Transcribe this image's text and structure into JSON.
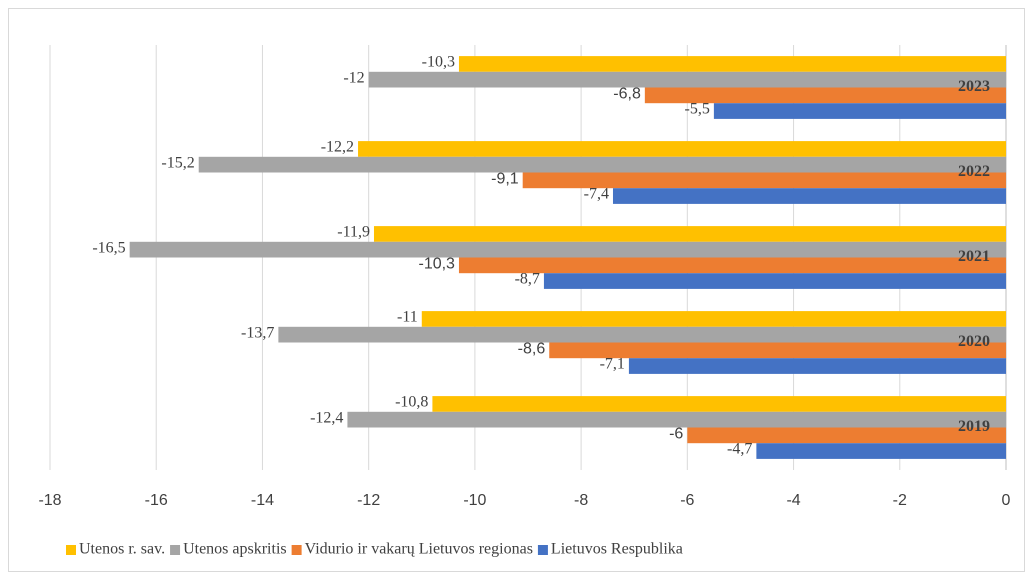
{
  "chart_data": {
    "type": "hbar",
    "categories": [
      "2023",
      "2022",
      "2021",
      "2020",
      "2019"
    ],
    "series": [
      {
        "name": "Utenos r. sav.",
        "color": "#FFC000",
        "values": [
          -10.3,
          -12.2,
          -11.9,
          -11,
          -10.8
        ],
        "value_labels": [
          "-10,3",
          "-12,2",
          "-11,9",
          "-11",
          "-10,8"
        ]
      },
      {
        "name": "Utenos apskritis",
        "color": "#A5A5A5",
        "values": [
          -12,
          -15.2,
          -16.5,
          -13.7,
          -12.4
        ],
        "value_labels": [
          "-12",
          "-15,2",
          "-16,5",
          "-13,7",
          "-12,4"
        ]
      },
      {
        "name": "Vidurio ir vakarų Lietuvos regionas",
        "color": "#ED7D31",
        "values": [
          -6.8,
          -9.1,
          -10.3,
          -8.6,
          -6
        ],
        "value_labels": [
          "-6,8",
          "-9,1",
          "-10,3",
          "-8,6",
          "-6"
        ]
      },
      {
        "name": "Lietuvos Respublika",
        "color": "#4472C4",
        "values": [
          -5.5,
          -7.4,
          -8.7,
          -7.1,
          -4.7
        ],
        "value_labels": [
          "-5,5",
          "-7,4",
          "-8,7",
          "-7,1",
          "-4,7"
        ]
      }
    ],
    "xlim": [
      -18,
      0
    ],
    "xticks": [
      -18,
      -16,
      -14,
      -12,
      -10,
      -8,
      -6,
      -4,
      -2,
      0
    ],
    "legend": "bottom"
  }
}
